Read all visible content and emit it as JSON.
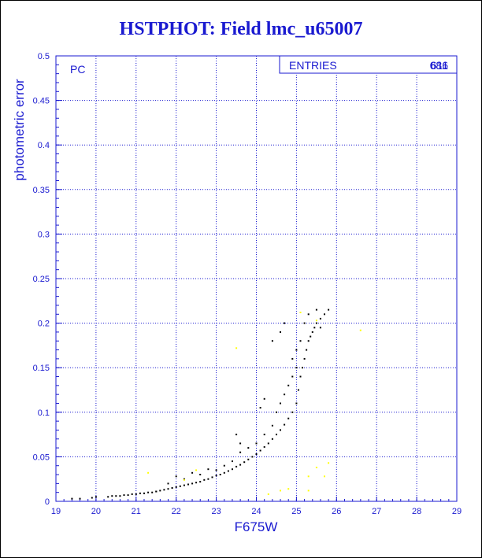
{
  "chart_data": {
    "type": "scatter",
    "title": "HSTPHOT: Field lmc_u65007",
    "xlabel": "F675W",
    "ylabel": "photometric error",
    "xlim": [
      19,
      29
    ],
    "ylim": [
      0,
      0.5
    ],
    "xticks": [
      "19",
      "20",
      "21",
      "22",
      "23",
      "24",
      "25",
      "26",
      "27",
      "28",
      "29"
    ],
    "yticks": [
      "0",
      "0.05",
      "0.1",
      "0.15",
      "0.2",
      "0.25",
      "0.3",
      "0.35",
      "0.4",
      "0.45",
      "0.5"
    ],
    "grid": true,
    "panel_label": "PC",
    "stats_box": {
      "label": "ENTRIES",
      "value": "686",
      "value_overlap": "611"
    },
    "colors": {
      "axis": "#1a1ad0",
      "main_points": "#000000",
      "secondary_points": "#ffff00"
    },
    "series": [
      {
        "color": "#000000",
        "points": [
          [
            19.4,
            0.003
          ],
          [
            19.6,
            0.003
          ],
          [
            19.9,
            0.004
          ],
          [
            20.0,
            0.005
          ],
          [
            20.3,
            0.005
          ],
          [
            20.5,
            0.006
          ],
          [
            20.6,
            0.006
          ],
          [
            20.7,
            0.007
          ],
          [
            20.8,
            0.007
          ],
          [
            20.9,
            0.008
          ],
          [
            21.0,
            0.008
          ],
          [
            21.1,
            0.009
          ],
          [
            21.2,
            0.009
          ],
          [
            21.3,
            0.01
          ],
          [
            21.4,
            0.01
          ],
          [
            21.5,
            0.011
          ],
          [
            21.6,
            0.012
          ],
          [
            21.7,
            0.013
          ],
          [
            21.8,
            0.014
          ],
          [
            21.9,
            0.015
          ],
          [
            22.0,
            0.016
          ],
          [
            22.1,
            0.017
          ],
          [
            22.2,
            0.018
          ],
          [
            22.3,
            0.019
          ],
          [
            22.4,
            0.02
          ],
          [
            22.5,
            0.021
          ],
          [
            22.6,
            0.022
          ],
          [
            22.7,
            0.024
          ],
          [
            22.8,
            0.025
          ],
          [
            22.9,
            0.027
          ],
          [
            23.0,
            0.029
          ],
          [
            23.1,
            0.03
          ],
          [
            23.2,
            0.032
          ],
          [
            23.3,
            0.034
          ],
          [
            23.4,
            0.036
          ],
          [
            23.5,
            0.039
          ],
          [
            23.6,
            0.041
          ],
          [
            23.7,
            0.044
          ],
          [
            23.8,
            0.047
          ],
          [
            23.9,
            0.05
          ],
          [
            24.0,
            0.053
          ],
          [
            24.1,
            0.057
          ],
          [
            24.2,
            0.061
          ],
          [
            24.3,
            0.065
          ],
          [
            24.4,
            0.07
          ],
          [
            24.5,
            0.075
          ],
          [
            24.6,
            0.08
          ],
          [
            24.7,
            0.086
          ],
          [
            24.8,
            0.093
          ],
          [
            24.9,
            0.1
          ],
          [
            25.0,
            0.11
          ],
          [
            25.05,
            0.125
          ],
          [
            25.1,
            0.14
          ],
          [
            25.15,
            0.15
          ],
          [
            25.2,
            0.16
          ],
          [
            25.25,
            0.17
          ],
          [
            25.3,
            0.18
          ],
          [
            25.35,
            0.185
          ],
          [
            25.4,
            0.19
          ],
          [
            25.45,
            0.195
          ],
          [
            25.5,
            0.2
          ],
          [
            25.6,
            0.205
          ],
          [
            25.7,
            0.21
          ],
          [
            25.8,
            0.215
          ],
          [
            21.8,
            0.02
          ],
          [
            22.2,
            0.025
          ],
          [
            22.6,
            0.03
          ],
          [
            23.0,
            0.035
          ],
          [
            23.4,
            0.045
          ],
          [
            23.6,
            0.055
          ],
          [
            23.8,
            0.06
          ],
          [
            24.0,
            0.065
          ],
          [
            24.2,
            0.075
          ],
          [
            24.4,
            0.085
          ],
          [
            24.5,
            0.1
          ],
          [
            24.6,
            0.11
          ],
          [
            24.7,
            0.12
          ],
          [
            24.8,
            0.13
          ],
          [
            24.9,
            0.14
          ],
          [
            25.0,
            0.15
          ],
          [
            25.0,
            0.17
          ],
          [
            25.1,
            0.18
          ],
          [
            25.2,
            0.2
          ],
          [
            25.3,
            0.21
          ],
          [
            24.1,
            0.105
          ],
          [
            24.2,
            0.115
          ],
          [
            24.4,
            0.18
          ],
          [
            24.6,
            0.19
          ],
          [
            24.7,
            0.2
          ],
          [
            23.5,
            0.075
          ],
          [
            23.6,
            0.065
          ],
          [
            22.0,
            0.028
          ],
          [
            22.4,
            0.032
          ],
          [
            22.8,
            0.036
          ],
          [
            23.2,
            0.04
          ],
          [
            20.4,
            0.006
          ],
          [
            21.5,
            0.011
          ],
          [
            24.9,
            0.16
          ],
          [
            25.5,
            0.215
          ],
          [
            25.6,
            0.195
          ]
        ]
      },
      {
        "color": "#ffff00",
        "points": [
          [
            23.5,
            0.172
          ],
          [
            24.3,
            0.008
          ],
          [
            24.6,
            0.012
          ],
          [
            24.8,
            0.014
          ],
          [
            25.3,
            0.028
          ],
          [
            25.3,
            0.012
          ],
          [
            25.5,
            0.038
          ],
          [
            25.7,
            0.028
          ],
          [
            25.8,
            0.043
          ],
          [
            26.6,
            0.192
          ],
          [
            25.5,
            0.203
          ],
          [
            25.1,
            0.212
          ],
          [
            21.3,
            0.032
          ],
          [
            22.2,
            0.024
          ],
          [
            22.5,
            0.035
          ]
        ]
      }
    ]
  }
}
